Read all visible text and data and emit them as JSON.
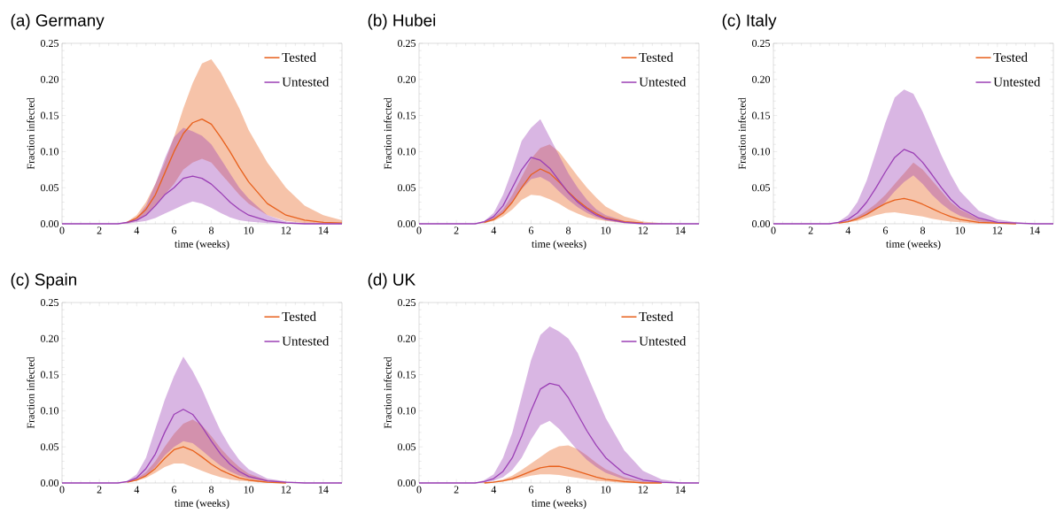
{
  "chart_data": [
    {
      "type": "line",
      "title": "(a) Germany",
      "xlabel": "time (weeks)",
      "ylabel": "Fraction infected",
      "legend": "top right",
      "x": [
        0,
        1,
        2,
        3,
        3.5,
        4,
        4.5,
        5,
        5.5,
        6,
        6.5,
        7,
        7.5,
        8,
        8.5,
        9,
        9.5,
        10,
        11,
        12,
        13,
        14,
        15
      ],
      "xlim": [
        0,
        15
      ],
      "xticks": [
        0,
        2,
        4,
        6,
        8,
        10,
        12,
        14
      ],
      "ylim": [
        0,
        0.25
      ],
      "yticks": [
        {
          "value": 0,
          "label": "0.00"
        },
        {
          "value": 0.05,
          "label": "0.05"
        },
        {
          "value": 0.1,
          "label": "0.10"
        },
        {
          "value": 0.15,
          "label": "0.15"
        },
        {
          "value": 0.2,
          "label": "0.20"
        },
        {
          "value": 0.25,
          "label": "0.25"
        }
      ],
      "series": [
        {
          "name": "Tested",
          "color": "#e8601c",
          "values": [
            null,
            null,
            null,
            null,
            0.002,
            0.008,
            0.02,
            0.04,
            0.07,
            0.1,
            0.125,
            0.14,
            0.145,
            0.138,
            0.12,
            0.1,
            0.078,
            0.058,
            0.028,
            0.012,
            0.005,
            0.002,
            0.001
          ],
          "upper": [
            0,
            0,
            0,
            0,
            0.003,
            0.012,
            0.03,
            0.055,
            0.085,
            0.12,
            0.16,
            0.195,
            0.222,
            0.228,
            0.21,
            0.185,
            0.16,
            0.13,
            0.085,
            0.05,
            0.025,
            0.012,
            0.005
          ],
          "lower": [
            0,
            0,
            0,
            0,
            0.001,
            0.004,
            0.012,
            0.025,
            0.04,
            0.055,
            0.075,
            0.085,
            0.09,
            0.085,
            0.07,
            0.055,
            0.04,
            0.028,
            0.012,
            0.004,
            0.001,
            0,
            0
          ]
        },
        {
          "name": "Untested",
          "color": "#9b3fb5",
          "values": [
            0,
            0,
            0,
            0,
            0.002,
            0.005,
            0.012,
            0.025,
            0.04,
            0.05,
            0.063,
            0.066,
            0.063,
            0.055,
            0.043,
            0.03,
            0.02,
            0.012,
            0.004,
            0.001,
            0,
            0,
            0
          ],
          "upper": [
            0,
            0,
            0,
            0,
            0.003,
            0.008,
            0.025,
            0.055,
            0.09,
            0.12,
            0.133,
            0.128,
            0.122,
            0.11,
            0.09,
            0.07,
            0.05,
            0.035,
            0.012,
            0.003,
            0.001,
            0,
            0
          ],
          "lower": [
            0,
            0,
            0,
            0,
            0,
            0.002,
            0.004,
            0.008,
            0.014,
            0.02,
            0.026,
            0.031,
            0.028,
            0.022,
            0.015,
            0.009,
            0.005,
            0.003,
            0.001,
            0,
            0,
            0,
            0
          ]
        }
      ]
    },
    {
      "type": "line",
      "title": "(b) Hubei",
      "xlabel": "time (weeks)",
      "ylabel": "Fraction infected",
      "legend": "top right",
      "x": [
        0,
        1,
        2,
        3,
        3.5,
        4,
        4.5,
        5,
        5.5,
        6,
        6.5,
        7,
        7.5,
        8,
        8.5,
        9,
        9.5,
        10,
        11,
        12,
        13,
        14,
        15
      ],
      "xlim": [
        0,
        15
      ],
      "xticks": [
        0,
        2,
        4,
        6,
        8,
        10,
        12,
        14
      ],
      "ylim": [
        0,
        0.25
      ],
      "yticks": [
        {
          "value": 0,
          "label": "0.00"
        },
        {
          "value": 0.05,
          "label": "0.05"
        },
        {
          "value": 0.1,
          "label": "0.10"
        },
        {
          "value": 0.15,
          "label": "0.15"
        },
        {
          "value": 0.2,
          "label": "0.20"
        },
        {
          "value": 0.25,
          "label": "0.25"
        }
      ],
      "series": [
        {
          "name": "Tested",
          "color": "#e8601c",
          "values": [
            null,
            null,
            null,
            null,
            0.002,
            0.006,
            0.015,
            0.03,
            0.05,
            0.068,
            0.076,
            0.07,
            0.058,
            0.044,
            0.032,
            0.022,
            0.014,
            0.008,
            0.003,
            0.001,
            null,
            null,
            null
          ],
          "upper": [
            0,
            0,
            0,
            0,
            0.003,
            0.009,
            0.02,
            0.04,
            0.065,
            0.09,
            0.105,
            0.11,
            0.1,
            0.083,
            0.066,
            0.05,
            0.036,
            0.024,
            0.01,
            0.003,
            0.001,
            0,
            0
          ],
          "lower": [
            0,
            0,
            0,
            0,
            0.001,
            0.004,
            0.01,
            0.02,
            0.033,
            0.04,
            0.039,
            0.034,
            0.028,
            0.02,
            0.014,
            0.009,
            0.006,
            0.004,
            0.001,
            0,
            0,
            0,
            0
          ]
        },
        {
          "name": "Untested",
          "color": "#9b3fb5",
          "values": [
            0,
            0,
            0,
            0,
            0.003,
            0.01,
            0.025,
            0.05,
            0.075,
            0.092,
            0.088,
            0.077,
            0.06,
            0.043,
            0.03,
            0.02,
            0.012,
            0.007,
            0.002,
            0,
            0,
            0,
            0
          ],
          "upper": [
            0,
            0,
            0,
            0,
            0.004,
            0.015,
            0.04,
            0.075,
            0.115,
            0.133,
            0.145,
            0.12,
            0.095,
            0.07,
            0.05,
            0.033,
            0.02,
            0.012,
            0.004,
            0.001,
            0,
            0,
            0
          ],
          "lower": [
            0,
            0,
            0,
            0,
            0.002,
            0.006,
            0.015,
            0.03,
            0.048,
            0.062,
            0.065,
            0.058,
            0.045,
            0.033,
            0.023,
            0.015,
            0.009,
            0.005,
            0.001,
            0,
            0,
            0,
            0
          ]
        }
      ]
    },
    {
      "type": "line",
      "title": "(c) Italy",
      "xlabel": "time (weeks)",
      "ylabel": "Fraction infected",
      "legend": "top right",
      "x": [
        0,
        1,
        2,
        3,
        3.5,
        4,
        4.5,
        5,
        5.5,
        6,
        6.5,
        7,
        7.5,
        8,
        8.5,
        9,
        9.5,
        10,
        11,
        12,
        13,
        14,
        15
      ],
      "xlim": [
        0,
        15
      ],
      "xticks": [
        0,
        2,
        4,
        6,
        8,
        10,
        12,
        14
      ],
      "ylim": [
        0,
        0.25
      ],
      "yticks": [
        {
          "value": 0,
          "label": "0.00"
        },
        {
          "value": 0.05,
          "label": "0.05"
        },
        {
          "value": 0.1,
          "label": "0.10"
        },
        {
          "value": 0.15,
          "label": "0.15"
        },
        {
          "value": 0.2,
          "label": "0.20"
        },
        {
          "value": 0.25,
          "label": "0.25"
        }
      ],
      "series": [
        {
          "name": "Tested",
          "color": "#e8601c",
          "values": [
            null,
            null,
            null,
            null,
            0.001,
            0.003,
            0.007,
            0.013,
            0.021,
            0.028,
            0.033,
            0.035,
            0.032,
            0.027,
            0.021,
            0.015,
            0.01,
            0.006,
            0.002,
            0.001,
            0,
            null,
            null
          ],
          "upper": [
            0,
            0,
            0,
            0,
            0.001,
            0.004,
            0.01,
            0.018,
            0.028,
            0.04,
            0.055,
            0.07,
            0.085,
            0.075,
            0.06,
            0.045,
            0.03,
            0.02,
            0.007,
            0.002,
            0,
            0,
            0
          ],
          "lower": [
            0,
            0,
            0,
            0,
            0,
            0.002,
            0.004,
            0.008,
            0.012,
            0.015,
            0.016,
            0.014,
            0.012,
            0.01,
            0.007,
            0.005,
            0.003,
            0.002,
            0,
            0,
            0,
            0,
            0
          ]
        },
        {
          "name": "Untested",
          "color": "#9b3fb5",
          "values": [
            0,
            0,
            0,
            0,
            0.002,
            0.006,
            0.015,
            0.03,
            0.05,
            0.072,
            0.092,
            0.103,
            0.098,
            0.085,
            0.068,
            0.05,
            0.034,
            0.022,
            0.008,
            0.002,
            0.001,
            0,
            0
          ],
          "upper": [
            0,
            0,
            0,
            0,
            0.003,
            0.012,
            0.03,
            0.06,
            0.1,
            0.14,
            0.175,
            0.186,
            0.18,
            0.155,
            0.125,
            0.095,
            0.068,
            0.045,
            0.018,
            0.006,
            0.002,
            0,
            0
          ],
          "lower": [
            0,
            0,
            0,
            0,
            0.001,
            0.003,
            0.007,
            0.012,
            0.02,
            0.03,
            0.045,
            0.058,
            0.067,
            0.055,
            0.04,
            0.028,
            0.018,
            0.011,
            0.003,
            0.001,
            0,
            0,
            0
          ]
        }
      ]
    },
    {
      "type": "line",
      "title": "(c) Spain",
      "xlabel": "time (weeks)",
      "ylabel": "Fraction infected",
      "legend": "top right",
      "x": [
        0,
        1,
        2,
        3,
        3.5,
        4,
        4.5,
        5,
        5.5,
        6,
        6.5,
        7,
        7.5,
        8,
        8.5,
        9,
        9.5,
        10,
        11,
        12,
        13,
        14,
        15
      ],
      "xlim": [
        0,
        15
      ],
      "xticks": [
        0,
        2,
        4,
        6,
        8,
        10,
        12,
        14
      ],
      "ylim": [
        0,
        0.25
      ],
      "yticks": [
        {
          "value": 0,
          "label": "0.00"
        },
        {
          "value": 0.05,
          "label": "0.05"
        },
        {
          "value": 0.1,
          "label": "0.10"
        },
        {
          "value": 0.15,
          "label": "0.15"
        },
        {
          "value": 0.2,
          "label": "0.20"
        },
        {
          "value": 0.25,
          "label": "0.25"
        }
      ],
      "series": [
        {
          "name": "Tested",
          "color": "#e8601c",
          "values": [
            null,
            null,
            null,
            null,
            0.001,
            0.004,
            0.01,
            0.02,
            0.034,
            0.046,
            0.05,
            0.045,
            0.036,
            0.026,
            0.018,
            0.012,
            0.007,
            0.004,
            0.001,
            0,
            null,
            null,
            null
          ],
          "upper": [
            0,
            0,
            0,
            0,
            0.002,
            0.006,
            0.015,
            0.03,
            0.05,
            0.068,
            0.082,
            0.088,
            0.08,
            0.065,
            0.048,
            0.034,
            0.022,
            0.013,
            0.004,
            0.001,
            0,
            0,
            0
          ],
          "lower": [
            0,
            0,
            0,
            0,
            0.001,
            0.003,
            0.007,
            0.014,
            0.022,
            0.027,
            0.027,
            0.022,
            0.017,
            0.012,
            0.008,
            0.005,
            0.003,
            0.002,
            0,
            0,
            0,
            0,
            0
          ]
        },
        {
          "name": "Untested",
          "color": "#9b3fb5",
          "values": [
            0,
            0,
            0,
            0,
            0.002,
            0.007,
            0.02,
            0.04,
            0.07,
            0.095,
            0.102,
            0.095,
            0.078,
            0.058,
            0.04,
            0.026,
            0.016,
            0.009,
            0.003,
            0.001,
            0,
            0,
            0
          ],
          "upper": [
            0,
            0,
            0,
            0,
            0.003,
            0.012,
            0.035,
            0.075,
            0.115,
            0.148,
            0.175,
            0.155,
            0.13,
            0.1,
            0.072,
            0.05,
            0.032,
            0.019,
            0.006,
            0.002,
            0,
            0,
            0
          ],
          "lower": [
            0,
            0,
            0,
            0,
            0.001,
            0.004,
            0.01,
            0.022,
            0.038,
            0.05,
            0.058,
            0.055,
            0.045,
            0.034,
            0.024,
            0.016,
            0.01,
            0.006,
            0.002,
            0,
            0,
            0,
            0
          ]
        }
      ]
    },
    {
      "type": "line",
      "title": "(d) UK",
      "xlabel": "time (weeks)",
      "ylabel": "Fraction infected",
      "legend": "top right",
      "x": [
        0,
        1,
        2,
        3,
        3.5,
        4,
        4.5,
        5,
        5.5,
        6,
        6.5,
        7,
        7.5,
        8,
        8.5,
        9,
        9.5,
        10,
        11,
        12,
        13,
        14,
        15
      ],
      "xlim": [
        0,
        15
      ],
      "xticks": [
        0,
        2,
        4,
        6,
        8,
        10,
        12,
        14
      ],
      "ylim": [
        0,
        0.25
      ],
      "yticks": [
        {
          "value": 0,
          "label": "0.00"
        },
        {
          "value": 0.05,
          "label": "0.05"
        },
        {
          "value": 0.1,
          "label": "0.10"
        },
        {
          "value": 0.15,
          "label": "0.15"
        },
        {
          "value": 0.2,
          "label": "0.20"
        },
        {
          "value": 0.25,
          "label": "0.25"
        }
      ],
      "series": [
        {
          "name": "Tested",
          "color": "#e8601c",
          "values": [
            null,
            null,
            null,
            null,
            0,
            0.001,
            0.003,
            0.006,
            0.011,
            0.016,
            0.021,
            0.023,
            0.023,
            0.02,
            0.016,
            0.012,
            0.008,
            0.005,
            0.002,
            0,
            0,
            null,
            null
          ],
          "upper": [
            0,
            0,
            0,
            0,
            0.001,
            0.002,
            0.005,
            0.01,
            0.018,
            0.027,
            0.036,
            0.045,
            0.051,
            0.052,
            0.047,
            0.038,
            0.028,
            0.019,
            0.008,
            0.002,
            0.001,
            0,
            0
          ],
          "lower": [
            0,
            0,
            0,
            0,
            0,
            0.001,
            0.002,
            0.004,
            0.007,
            0.01,
            0.012,
            0.012,
            0.011,
            0.009,
            0.007,
            0.005,
            0.003,
            0.002,
            0,
            0,
            0,
            0,
            0
          ]
        },
        {
          "name": "Untested",
          "color": "#9b3fb5",
          "values": [
            0,
            0,
            0,
            0,
            0.002,
            0.006,
            0.016,
            0.035,
            0.065,
            0.1,
            0.13,
            0.138,
            0.135,
            0.118,
            0.095,
            0.072,
            0.052,
            0.035,
            0.013,
            0.004,
            0.001,
            0,
            0
          ],
          "upper": [
            0,
            0,
            0,
            0,
            0.004,
            0.012,
            0.035,
            0.07,
            0.12,
            0.17,
            0.205,
            0.217,
            0.21,
            0.2,
            0.18,
            0.15,
            0.12,
            0.09,
            0.045,
            0.017,
            0.005,
            0.001,
            0
          ],
          "lower": [
            0,
            0,
            0,
            0,
            0.001,
            0.003,
            0.008,
            0.018,
            0.035,
            0.06,
            0.08,
            0.086,
            0.075,
            0.06,
            0.045,
            0.032,
            0.022,
            0.014,
            0.005,
            0.001,
            0,
            0,
            0
          ]
        }
      ]
    }
  ]
}
